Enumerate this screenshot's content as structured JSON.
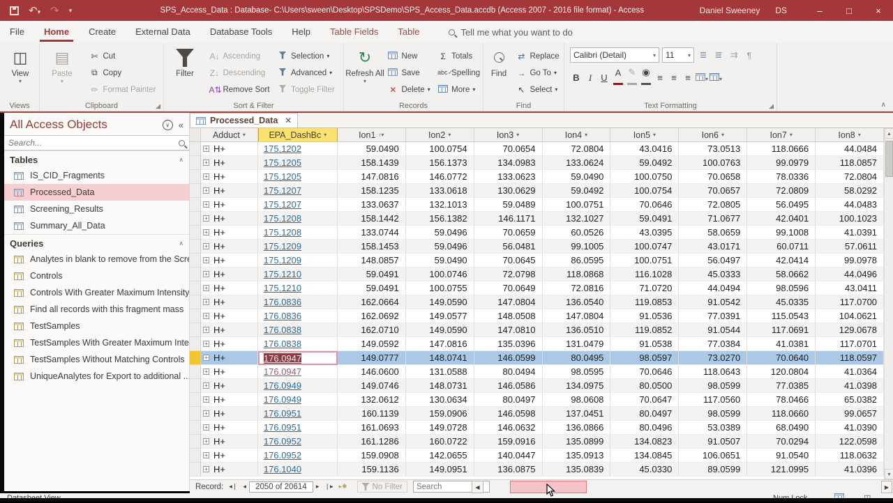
{
  "titlebar": {
    "title": "SPS_Access_Data : Database- C:\\Users\\sween\\Desktop\\SPSDemo\\SPS_Access_Data.accdb (Access 2007 - 2016 file format)  -  Access",
    "user_name": "Daniel Sweeney",
    "user_initials": "DS"
  },
  "ribbon_tabs": [
    {
      "label": "File",
      "state": "normal"
    },
    {
      "label": "Home",
      "state": "active"
    },
    {
      "label": "Create",
      "state": "normal"
    },
    {
      "label": "External Data",
      "state": "normal"
    },
    {
      "label": "Database Tools",
      "state": "normal"
    },
    {
      "label": "Help",
      "state": "normal"
    },
    {
      "label": "Table Fields",
      "state": "contextual"
    },
    {
      "label": "Table",
      "state": "contextual"
    }
  ],
  "tellme": "Tell me what you want to do",
  "ribbon": {
    "views": {
      "view": "View",
      "label": "Views"
    },
    "clipboard": {
      "paste": "Paste",
      "cut": "Cut",
      "copy": "Copy",
      "format_painter": "Format Painter",
      "label": "Clipboard"
    },
    "sort_filter": {
      "filter": "Filter",
      "ascending": "Ascending",
      "descending": "Descending",
      "remove_sort": "Remove Sort",
      "selection": "Selection",
      "advanced": "Advanced",
      "toggle_filter": "Toggle Filter",
      "label": "Sort & Filter"
    },
    "records": {
      "refresh_all": "Refresh All",
      "new": "New",
      "save": "Save",
      "delete": "Delete",
      "totals": "Totals",
      "spelling": "Spelling",
      "more": "More",
      "label": "Records"
    },
    "find": {
      "find": "Find",
      "replace": "Replace",
      "goto": "Go To",
      "select": "Select",
      "label": "Find"
    },
    "text_formatting": {
      "font_name": "Calibri (Detail)",
      "font_size": "11",
      "label": "Text Formatting"
    }
  },
  "nav": {
    "header": "All Access Objects",
    "search_placeholder": "Search...",
    "sections": [
      {
        "label": "Tables",
        "type": "table",
        "items": [
          {
            "label": "IS_CID_Fragments",
            "selected": false
          },
          {
            "label": "Processed_Data",
            "selected": true
          },
          {
            "label": "Screening_Results",
            "selected": false
          },
          {
            "label": "Summary_All_Data",
            "selected": false
          }
        ]
      },
      {
        "label": "Queries",
        "type": "query",
        "items": [
          {
            "label": "Analytes in blank to remove from the Scre...",
            "selected": false
          },
          {
            "label": "Controls",
            "selected": false
          },
          {
            "label": "Controls With Greater Maximum Intensity",
            "selected": false
          },
          {
            "label": "Find all records with this fragment mass",
            "selected": false
          },
          {
            "label": "TestSamples",
            "selected": false
          },
          {
            "label": "TestSamples With Greater Maximum Inte...",
            "selected": false
          },
          {
            "label": "TestSamples Without Matching Controls",
            "selected": false
          },
          {
            "label": "UniqueAnalytes for Export to additional ...",
            "selected": false
          }
        ]
      }
    ]
  },
  "document_tab": "Processed_Data",
  "table": {
    "columns": [
      "Adduct",
      "EPA_DashBc",
      "Ion1",
      "Ion2",
      "Ion3",
      "Ion4",
      "Ion5",
      "Ion6",
      "Ion7",
      "Ion8"
    ],
    "selected_column": "EPA_DashBc",
    "sorted_column": "Ion1",
    "rows": [
      {
        "adduct": "H+",
        "epa": "175.1202",
        "ions": [
          "59.0490",
          "100.0754",
          "70.0654",
          "72.0804",
          "43.0416",
          "73.0513",
          "118.0666",
          "44.0484"
        ],
        "selected": false,
        "visited": false
      },
      {
        "adduct": "H+",
        "epa": "175.1205",
        "ions": [
          "158.1439",
          "156.1373",
          "134.0983",
          "133.0624",
          "59.0492",
          "100.0763",
          "99.0979",
          "118.0857"
        ],
        "selected": false,
        "visited": false
      },
      {
        "adduct": "H+",
        "epa": "175.1205",
        "ions": [
          "147.0816",
          "146.0772",
          "133.0623",
          "59.0490",
          "100.0750",
          "70.0658",
          "78.0336",
          "72.0804"
        ],
        "selected": false,
        "visited": false
      },
      {
        "adduct": "H+",
        "epa": "175.1207",
        "ions": [
          "158.1235",
          "133.0618",
          "130.0629",
          "59.0492",
          "100.0754",
          "70.0657",
          "72.0809",
          "58.0292"
        ],
        "selected": false,
        "visited": false
      },
      {
        "adduct": "H+",
        "epa": "175.1207",
        "ions": [
          "133.0637",
          "132.1013",
          "59.0489",
          "100.0751",
          "70.0646",
          "72.0805",
          "56.0495",
          "44.0483"
        ],
        "selected": false,
        "visited": false
      },
      {
        "adduct": "H+",
        "epa": "175.1208",
        "ions": [
          "158.1442",
          "156.1382",
          "146.1171",
          "132.1027",
          "59.0491",
          "71.0677",
          "42.0401",
          "100.1023"
        ],
        "selected": false,
        "visited": false
      },
      {
        "adduct": "H+",
        "epa": "175.1208",
        "ions": [
          "133.0744",
          "59.0496",
          "70.0659",
          "60.0526",
          "43.0395",
          "58.0659",
          "99.1008",
          "41.0391"
        ],
        "selected": false,
        "visited": false
      },
      {
        "adduct": "H+",
        "epa": "175.1209",
        "ions": [
          "158.1453",
          "59.0496",
          "56.0481",
          "99.1005",
          "100.0747",
          "43.0171",
          "60.0711",
          "57.0611"
        ],
        "selected": false,
        "visited": false
      },
      {
        "adduct": "H+",
        "epa": "175.1209",
        "ions": [
          "148.0857",
          "59.0490",
          "70.0645",
          "86.0595",
          "100.0751",
          "56.0497",
          "42.0414",
          "99.0978"
        ],
        "selected": false,
        "visited": false
      },
      {
        "adduct": "H+",
        "epa": "175.1210",
        "ions": [
          "59.0491",
          "100.0746",
          "72.0798",
          "118.0868",
          "116.1028",
          "45.0333",
          "58.0662",
          "44.0496"
        ],
        "selected": false,
        "visited": false
      },
      {
        "adduct": "H+",
        "epa": "175.1210",
        "ions": [
          "59.0491",
          "100.0755",
          "70.0649",
          "72.0816",
          "71.0720",
          "44.0494",
          "98.0596",
          "43.0411"
        ],
        "selected": false,
        "visited": false
      },
      {
        "adduct": "H+",
        "epa": "176.0836",
        "ions": [
          "162.0664",
          "149.0590",
          "147.0804",
          "136.0540",
          "119.0853",
          "91.0542",
          "45.0335",
          "117.0700"
        ],
        "selected": false,
        "visited": false
      },
      {
        "adduct": "H+",
        "epa": "176.0836",
        "ions": [
          "162.0692",
          "149.0577",
          "148.0508",
          "147.0804",
          "91.0536",
          "77.0391",
          "115.0543",
          "104.0621"
        ],
        "selected": false,
        "visited": false
      },
      {
        "adduct": "H+",
        "epa": "176.0838",
        "ions": [
          "162.0710",
          "149.0590",
          "147.0810",
          "136.0510",
          "119.0852",
          "91.0544",
          "117.0691",
          "129.0678"
        ],
        "selected": false,
        "visited": false
      },
      {
        "adduct": "H+",
        "epa": "176.0838",
        "ions": [
          "149.0592",
          "147.0816",
          "135.0396",
          "131.0479",
          "91.0538",
          "77.0384",
          "41.0381",
          "117.0701"
        ],
        "selected": false,
        "visited": false
      },
      {
        "adduct": "H+",
        "epa": "176.0947",
        "ions": [
          "149.0777",
          "148.0741",
          "146.0599",
          "80.0495",
          "98.0597",
          "73.0270",
          "70.0640",
          "118.0597"
        ],
        "selected": true,
        "visited": false
      },
      {
        "adduct": "H+",
        "epa": "176.0947",
        "ions": [
          "146.0600",
          "131.0588",
          "80.0494",
          "98.0595",
          "70.0646",
          "118.0643",
          "120.0804",
          "41.0364"
        ],
        "selected": false,
        "visited": true
      },
      {
        "adduct": "H+",
        "epa": "176.0949",
        "ions": [
          "149.0746",
          "148.0731",
          "146.0586",
          "134.0975",
          "80.0500",
          "98.0599",
          "77.0385",
          "41.0398"
        ],
        "selected": false,
        "visited": false
      },
      {
        "adduct": "H+",
        "epa": "176.0949",
        "ions": [
          "132.0612",
          "130.0634",
          "80.0497",
          "98.0608",
          "70.0647",
          "117.0560",
          "78.0466",
          "65.0382"
        ],
        "selected": false,
        "visited": false
      },
      {
        "adduct": "H+",
        "epa": "176.0951",
        "ions": [
          "160.1139",
          "159.0906",
          "146.0598",
          "137.0451",
          "80.0497",
          "98.0599",
          "118.0660",
          "99.0657"
        ],
        "selected": false,
        "visited": false
      },
      {
        "adduct": "H+",
        "epa": "176.0951",
        "ions": [
          "161.0693",
          "149.0728",
          "146.0632",
          "136.0866",
          "80.0496",
          "53.0389",
          "68.0490",
          "41.0390"
        ],
        "selected": false,
        "visited": false
      },
      {
        "adduct": "H+",
        "epa": "176.0952",
        "ions": [
          "161.1286",
          "160.0722",
          "159.0916",
          "135.0899",
          "134.0823",
          "91.0507",
          "70.0294",
          "122.0598"
        ],
        "selected": false,
        "visited": false
      },
      {
        "adduct": "H+",
        "epa": "176.0952",
        "ions": [
          "159.0908",
          "142.0655",
          "140.0447",
          "135.0913",
          "134.0845",
          "106.0651",
          "91.0540",
          "118.0632"
        ],
        "selected": false,
        "visited": false
      },
      {
        "adduct": "H+",
        "epa": "176.1040",
        "ions": [
          "159.1136",
          "149.0951",
          "136.0875",
          "135.0839",
          "45.0330",
          "89.0599",
          "121.0995",
          "41.0396"
        ],
        "selected": false,
        "visited": false
      }
    ]
  },
  "record_nav": {
    "label": "Record:",
    "position": "2050 of 20614",
    "no_filter": "No Filter",
    "search_placeholder": "Search"
  },
  "statusbar": {
    "left": "Datasheet View",
    "numlock": "Num Lock"
  },
  "colors": {
    "accent": "#A4373A",
    "selected_row": "#abc8e6",
    "selected_header": "#fbe170",
    "nav_selected": "#f6cdd0",
    "link": "#2a6b9d",
    "visited_link": "#9a5a6e",
    "scroll_thumb_hover": "#f6c3c8"
  }
}
